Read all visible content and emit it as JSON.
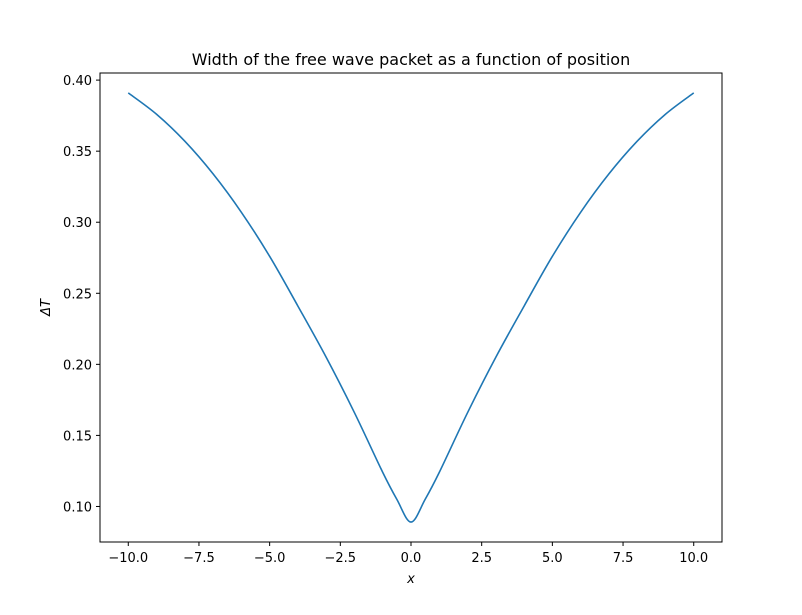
{
  "chart_data": {
    "type": "line",
    "title": "Width of the free wave packet as a function of position",
    "xlabel": "x",
    "ylabel": "ΔT",
    "xlim": [
      -11.0,
      11.0
    ],
    "ylim": [
      0.075,
      0.405
    ],
    "x_ticks": [
      -10.0,
      -7.5,
      -5.0,
      -2.5,
      0.0,
      2.5,
      5.0,
      7.5,
      10.0
    ],
    "x_tick_labels": [
      "−10.0",
      "−7.5",
      "−5.0",
      "−2.5",
      "0.0",
      "2.5",
      "5.0",
      "7.5",
      "10.0"
    ],
    "y_ticks": [
      0.1,
      0.15,
      0.2,
      0.25,
      0.3,
      0.35,
      0.4
    ],
    "y_tick_labels": [
      "0.10",
      "0.15",
      "0.20",
      "0.25",
      "0.30",
      "0.35",
      "0.40"
    ],
    "grid": false,
    "legend": "none",
    "series": [
      {
        "color": "#1f77b4",
        "x": [
          -10.0,
          -9.0,
          -8.0,
          -7.0,
          -6.0,
          -5.0,
          -4.0,
          -3.0,
          -2.0,
          -1.0,
          -0.5,
          0.0,
          0.5,
          1.0,
          2.0,
          3.0,
          4.0,
          5.0,
          6.0,
          7.0,
          8.0,
          9.0,
          10.0
        ],
        "y": [
          0.391,
          0.376,
          0.357,
          0.334,
          0.307,
          0.276,
          0.241,
          0.205,
          0.166,
          0.124,
          0.105,
          0.089,
          0.105,
          0.124,
          0.166,
          0.205,
          0.241,
          0.276,
          0.307,
          0.334,
          0.357,
          0.376,
          0.391
        ]
      }
    ]
  }
}
